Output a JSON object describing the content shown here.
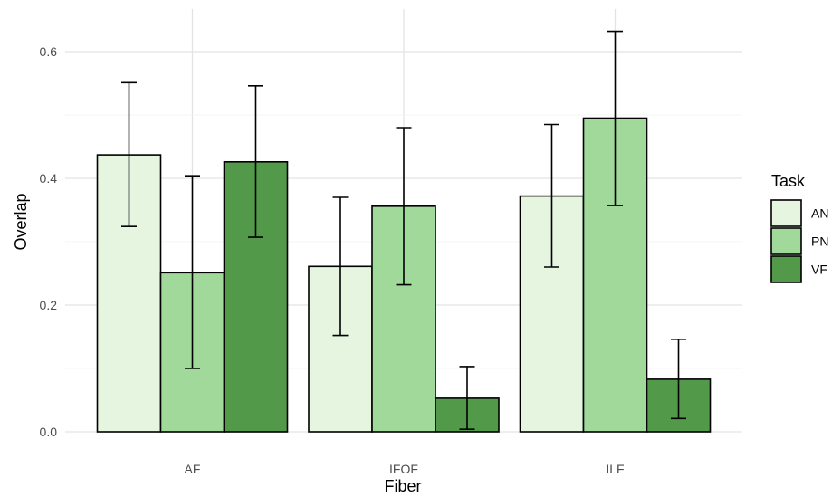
{
  "chart_data": {
    "type": "bar",
    "title": "",
    "xlabel": "Fiber",
    "ylabel": "Overlap",
    "categories": [
      "AF",
      "IFOF",
      "ILF"
    ],
    "ylim": [
      0,
      0.67
    ],
    "yticks": [
      0.0,
      0.2,
      0.4,
      0.6
    ],
    "ytick_labels": [
      "0.0",
      "0.2",
      "0.4",
      "0.6"
    ],
    "grid": true,
    "legend": {
      "title": "Task",
      "position": "right"
    },
    "series": [
      {
        "name": "AN",
        "color": "#e5f5e0",
        "values": [
          0.437,
          0.261,
          0.372
        ],
        "err_low": [
          0.324,
          0.152,
          0.26
        ],
        "err_high": [
          0.551,
          0.37,
          0.485
        ]
      },
      {
        "name": "PN",
        "color": "#a1d99b",
        "values": [
          0.251,
          0.356,
          0.495
        ],
        "err_low": [
          0.1,
          0.232,
          0.357
        ],
        "err_high": [
          0.404,
          0.48,
          0.632
        ]
      },
      {
        "name": "VF",
        "color": "#529a4a",
        "values": [
          0.426,
          0.053,
          0.083
        ],
        "err_low": [
          0.307,
          0.004,
          0.021
        ],
        "err_high": [
          0.546,
          0.103,
          0.146
        ]
      }
    ]
  }
}
